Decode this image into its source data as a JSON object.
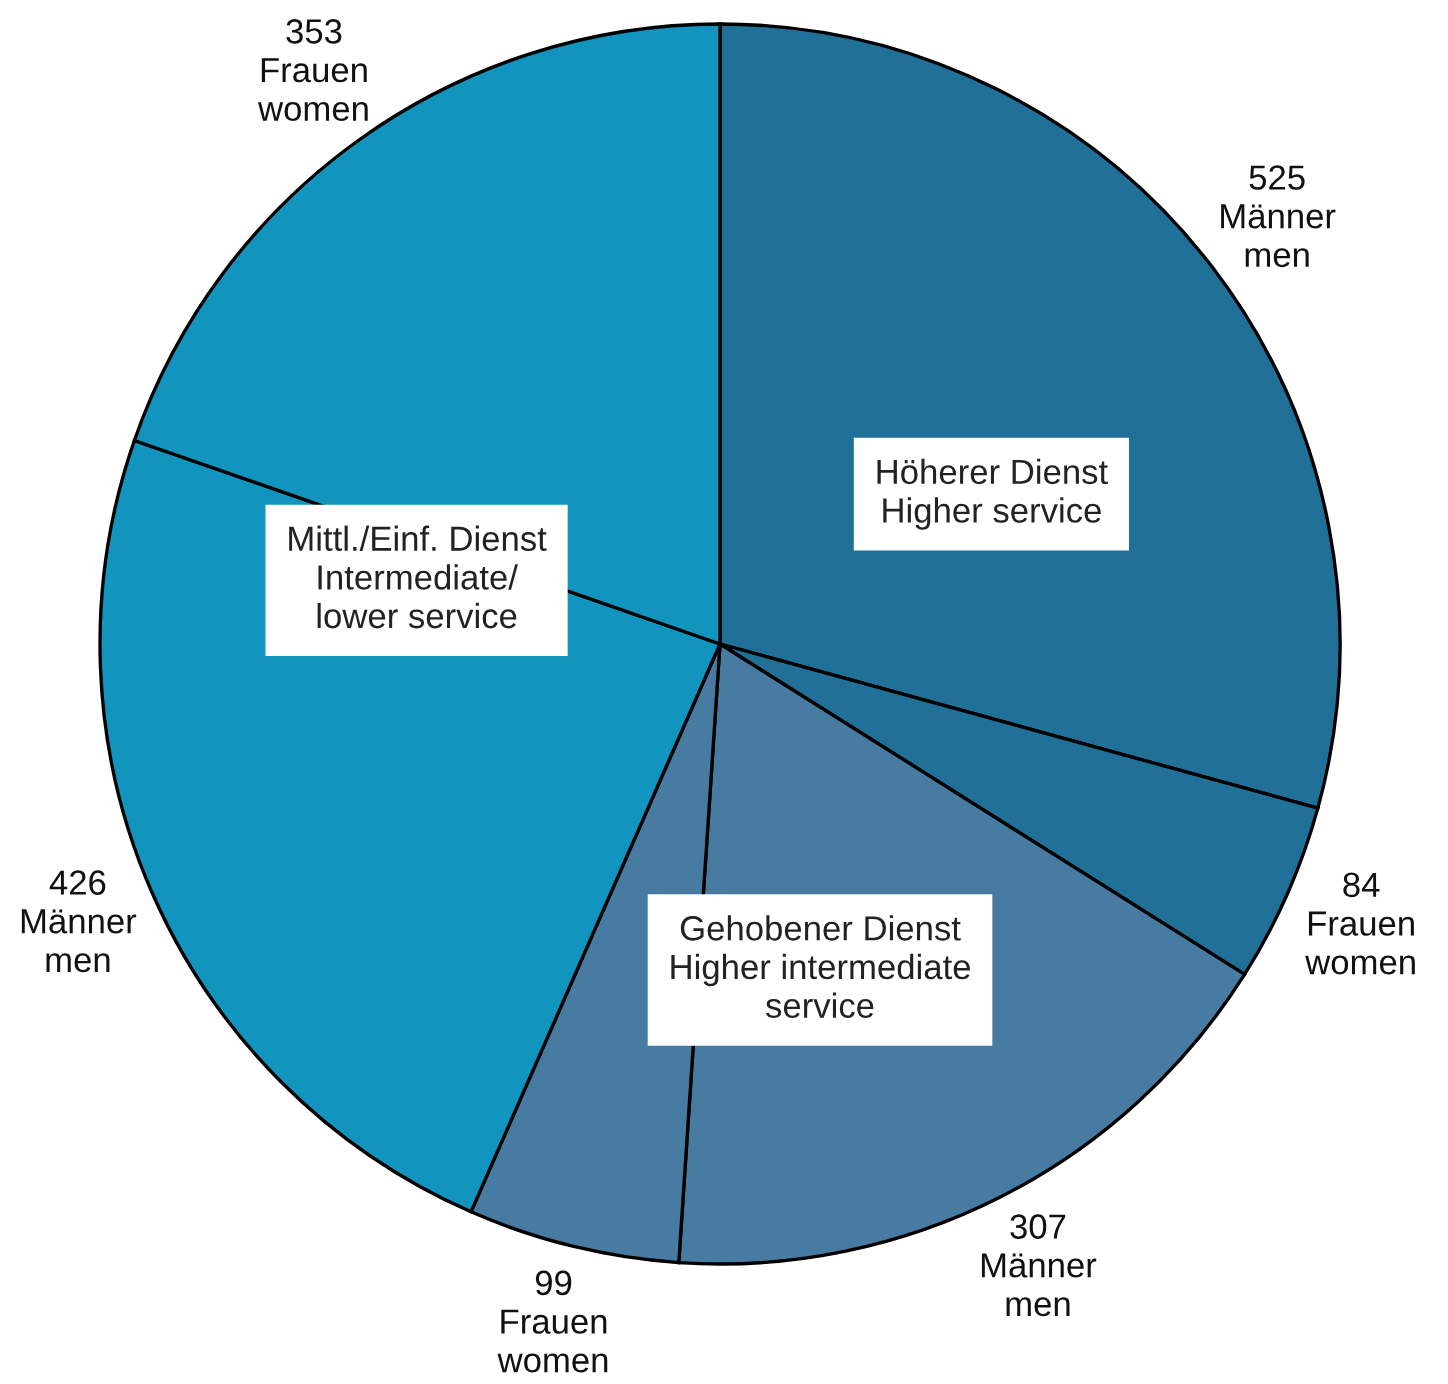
{
  "chart_data": {
    "type": "pie",
    "categories": [
      "Männer\nmen",
      "Frauen\nwomen",
      "Männer\nmen",
      "Frauen\nwomen",
      "Männer\nmen",
      "Frauen\nwomen"
    ],
    "values": [
      525,
      84,
      307,
      99,
      426,
      353
    ],
    "colors": [
      "#217098",
      "#217098",
      "#477ba1",
      "#477ba1",
      "#1194bd",
      "#1194bd"
    ],
    "data_labels": true,
    "annotations": [
      "Höherer Dienst\nHigher service",
      "Gehobener Dienst\nHigher intermediate\nservice",
      "Mittl./Einf. Dienst\nIntermediate/\nlower service"
    ]
  }
}
